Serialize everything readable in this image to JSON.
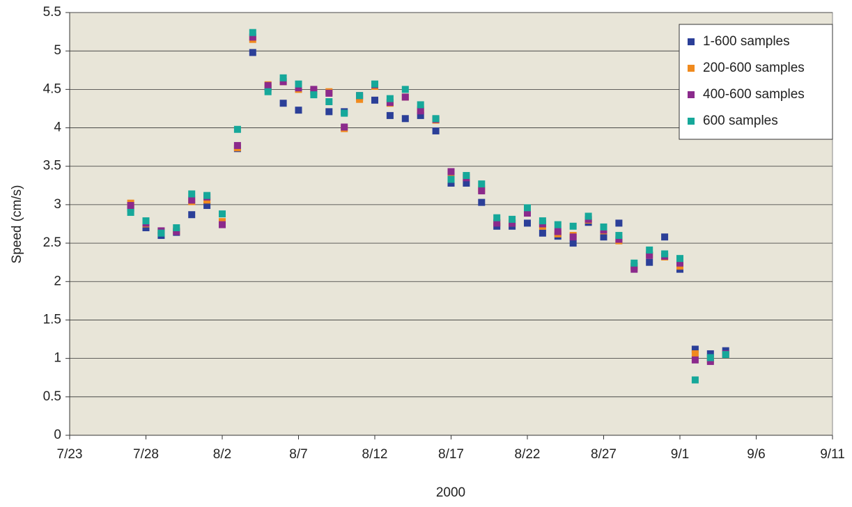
{
  "chart_data": {
    "type": "scatter",
    "xlabel": "2000",
    "ylabel": "Speed (cm/s)",
    "x": [
      "7/27",
      "7/28",
      "7/29",
      "7/30",
      "7/31",
      "8/1",
      "8/2",
      "8/3",
      "8/4",
      "8/5",
      "8/6",
      "8/7",
      "8/8",
      "8/9",
      "8/10",
      "8/11",
      "8/12",
      "8/13",
      "8/14",
      "8/15",
      "8/16",
      "8/17",
      "8/18",
      "8/19",
      "8/20",
      "8/21",
      "8/22",
      "8/23",
      "8/24",
      "8/25",
      "8/26",
      "8/27",
      "8/28",
      "8/29",
      "8/30",
      "8/31",
      "9/1",
      "9/2",
      "9/3",
      "9/4"
    ],
    "series": [
      {
        "name": "1-600 samples",
        "color": "#2b3f98",
        "values": [
          2.95,
          2.7,
          2.6,
          2.64,
          2.87,
          2.99,
          2.76,
          3.73,
          4.98,
          4.52,
          4.32,
          4.23,
          4.47,
          4.21,
          4.21,
          4.4,
          4.36,
          4.16,
          4.12,
          4.16,
          3.96,
          3.28,
          3.28,
          3.03,
          2.72,
          2.72,
          2.76,
          2.63,
          2.59,
          2.5,
          2.77,
          2.58,
          2.76,
          2.2,
          2.25,
          2.58,
          2.16,
          1.12,
          1.06,
          1.1
        ]
      },
      {
        "name": "200-600 samples",
        "color": "#f08a1e",
        "values": [
          3.02,
          2.75,
          2.65,
          2.66,
          3.04,
          3.06,
          2.78,
          3.74,
          5.15,
          4.56,
          4.6,
          4.5,
          4.48,
          4.47,
          3.99,
          4.37,
          4.54,
          4.32,
          4.4,
          4.24,
          4.1,
          3.42,
          3.36,
          3.2,
          2.77,
          2.76,
          2.9,
          2.72,
          2.62,
          2.6,
          2.8,
          2.66,
          2.53,
          2.18,
          2.35,
          2.32,
          2.2,
          1.06,
          0.98,
          1.05
        ]
      },
      {
        "name": "400-600 samples",
        "color": "#8b2a8c",
        "values": [
          2.99,
          2.76,
          2.66,
          2.65,
          3.06,
          3.1,
          2.74,
          3.77,
          5.18,
          4.55,
          4.6,
          4.52,
          4.5,
          4.45,
          4.01,
          4.42,
          4.56,
          4.33,
          4.4,
          4.22,
          4.11,
          3.43,
          3.35,
          3.18,
          2.76,
          2.76,
          2.89,
          2.75,
          2.65,
          2.58,
          2.81,
          2.67,
          2.55,
          2.16,
          2.34,
          2.33,
          2.24,
          0.98,
          0.96,
          1.06
        ]
      },
      {
        "name": "600 samples",
        "color": "#16a89a",
        "values": [
          2.9,
          2.79,
          2.63,
          2.7,
          3.14,
          3.12,
          2.88,
          3.98,
          5.24,
          4.47,
          4.65,
          4.57,
          4.43,
          4.34,
          4.19,
          4.42,
          4.57,
          4.38,
          4.5,
          4.3,
          4.12,
          3.33,
          3.38,
          3.27,
          2.83,
          2.81,
          2.96,
          2.79,
          2.74,
          2.72,
          2.85,
          2.71,
          2.6,
          2.24,
          2.41,
          2.36,
          2.3,
          0.72,
          1.01,
          1.05
        ]
      }
    ],
    "xlim": [
      "7/23",
      "9/11"
    ],
    "xticks": [
      "7/23",
      "7/28",
      "8/2",
      "8/7",
      "8/12",
      "8/17",
      "8/22",
      "8/27",
      "9/1",
      "9/6",
      "9/11"
    ],
    "ylim": [
      0,
      5.5
    ],
    "yticks": [
      0,
      0.5,
      1,
      1.5,
      2,
      2.5,
      3,
      3.5,
      4,
      4.5,
      5,
      5.5
    ],
    "grid": true,
    "legend": "upper right"
  }
}
